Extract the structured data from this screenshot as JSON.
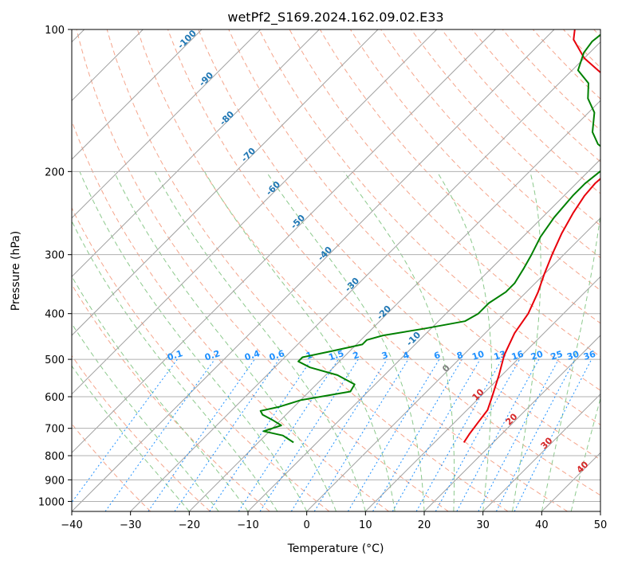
{
  "chart_data": {
    "type": "line",
    "subtype": "skew-t log-p diagram",
    "title": "wetPf2_S169.2024.162.09.02.E33",
    "xlabel": "Temperature (°C)",
    "ylabel": "Pressure (hPa)",
    "xlim": [
      -40,
      50
    ],
    "ylim": [
      1050,
      100
    ],
    "y_scale": "log",
    "grid": true,
    "x_ticks": [
      -40,
      -30,
      -20,
      -10,
      0,
      10,
      20,
      30,
      40,
      50
    ],
    "x_tick_labels": [
      "−40",
      "−30",
      "−20",
      "−10",
      "0",
      "10",
      "20",
      "30",
      "40",
      "50"
    ],
    "y_ticks": [
      100,
      200,
      300,
      400,
      500,
      600,
      700,
      800,
      900,
      1000
    ],
    "y_tick_labels": [
      "100",
      "200",
      "300",
      "400",
      "500",
      "600",
      "700",
      "800",
      "900",
      "1000"
    ],
    "isotherm_labels": [
      "-100",
      "-90",
      "-80",
      "-70",
      "-60",
      "-50",
      "-40",
      "-30",
      "-20",
      "-10"
    ],
    "mixing_ratio_labels": [
      "0.1",
      "0.2",
      "0.4",
      "0.6",
      "1",
      "1.5",
      "2",
      "3",
      "4",
      "6",
      "8",
      "10",
      "13",
      "16",
      "20",
      "25",
      "30",
      "36"
    ],
    "moist_adiabat_labels": [
      "0",
      "10",
      "20",
      "30",
      "40"
    ],
    "colors": {
      "temperature": "#e8000b",
      "dewpoint": "#008000",
      "isotherm": "#a0a0a0",
      "isotherm_label": "#1f77b4",
      "dry_adiabat": "#f5a58c",
      "moist_adiabat": "#8cc98c",
      "mixing_ratio": "#1e90ff",
      "mixing_label": "#1e90ff",
      "moist_label": "#d62728",
      "zero_label": "#808080"
    },
    "series": [
      {
        "key": "temperature",
        "points": [
          [
            15.0,
            750
          ],
          [
            14.5,
            720
          ],
          [
            14.0,
            680
          ],
          [
            13.5,
            640
          ],
          [
            12.0,
            600
          ],
          [
            9.5,
            540
          ],
          [
            7.0,
            490
          ],
          [
            5.0,
            440
          ],
          [
            4.0,
            400
          ],
          [
            2.0,
            360
          ],
          [
            0.0,
            330
          ],
          [
            -2.0,
            300
          ],
          [
            -4.0,
            270
          ],
          [
            -5.5,
            245
          ],
          [
            -6.5,
            225
          ],
          [
            -6.8,
            212
          ],
          [
            -6.5,
            200
          ],
          [
            -5.5,
            192
          ],
          [
            -5.0,
            185
          ],
          [
            -6.0,
            175
          ],
          [
            -7.5,
            163
          ],
          [
            -10.0,
            150
          ],
          [
            -15.0,
            140
          ],
          [
            -20.0,
            130
          ],
          [
            -25.0,
            123
          ],
          [
            -30.0,
            115
          ],
          [
            -35.0,
            105
          ],
          [
            -36.5,
            100
          ]
        ]
      },
      {
        "key": "dewpoint",
        "points": [
          [
            -14.0,
            750
          ],
          [
            -17.0,
            725
          ],
          [
            -21.0,
            710
          ],
          [
            -19.0,
            690
          ],
          [
            -21.0,
            675
          ],
          [
            -24.0,
            655
          ],
          [
            -25.0,
            643
          ],
          [
            -22.5,
            630
          ],
          [
            -20.0,
            610
          ],
          [
            -13.0,
            585
          ],
          [
            -13.5,
            565
          ],
          [
            -18.0,
            540
          ],
          [
            -24.0,
            520
          ],
          [
            -27.0,
            505
          ],
          [
            -27.0,
            495
          ],
          [
            -23.0,
            480
          ],
          [
            -19.0,
            465
          ],
          [
            -19.0,
            455
          ],
          [
            -17.0,
            445
          ],
          [
            -11.0,
            430
          ],
          [
            -5.5,
            415
          ],
          [
            -4.5,
            400
          ],
          [
            -4.5,
            380
          ],
          [
            -3.5,
            360
          ],
          [
            -3.5,
            345
          ],
          [
            -4.5,
            320
          ],
          [
            -5.5,
            300
          ],
          [
            -7.0,
            275
          ],
          [
            -8.0,
            250
          ],
          [
            -8.5,
            225
          ],
          [
            -8.5,
            212
          ],
          [
            -8.0,
            200
          ],
          [
            -6.0,
            193
          ],
          [
            -8.5,
            185
          ],
          [
            -13.0,
            175
          ],
          [
            -16.0,
            165
          ],
          [
            -19.0,
            150
          ],
          [
            -22.5,
            140
          ],
          [
            -25.0,
            130
          ],
          [
            -29.0,
            122
          ],
          [
            -31.0,
            112
          ],
          [
            -31.5,
            106
          ],
          [
            -31.0,
            100
          ]
        ]
      }
    ]
  }
}
